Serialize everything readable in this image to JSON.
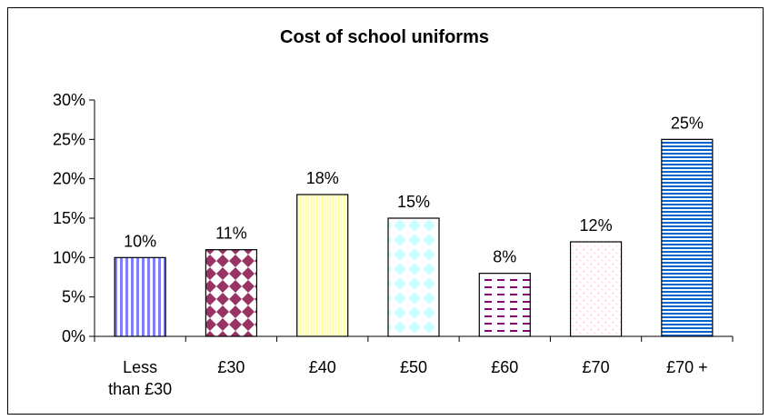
{
  "chart_data": {
    "type": "bar",
    "title": "Cost of school uniforms",
    "categories": [
      "Less than £30",
      "£30",
      "£40",
      "£50",
      "£60",
      "£70",
      "£70 +"
    ],
    "category_lines": [
      [
        "Less",
        "than £30"
      ],
      [
        "£30"
      ],
      [
        "£40"
      ],
      [
        "£50"
      ],
      [
        "£60"
      ],
      [
        "£70"
      ],
      [
        "£70 +"
      ]
    ],
    "values": [
      10,
      11,
      18,
      15,
      8,
      12,
      25
    ],
    "data_labels": [
      "10%",
      "11%",
      "18%",
      "15%",
      "8%",
      "12%",
      "25%"
    ],
    "ylim": [
      0,
      30
    ],
    "yticks": [
      0,
      5,
      10,
      15,
      20,
      25,
      30
    ],
    "ytick_labels": [
      "0%",
      "5%",
      "10%",
      "15%",
      "20%",
      "25%",
      "30%"
    ],
    "xlabel": "",
    "ylabel": "",
    "grid": false,
    "legend": "none",
    "bar_styles": [
      {
        "pattern": "vertical-stripes",
        "fg": "#8080ff",
        "bg": "#ffffff"
      },
      {
        "pattern": "checker-diamond",
        "fg": "#993366",
        "bg": "#ffffff"
      },
      {
        "pattern": "fine-hatch",
        "fg": "#ffff99",
        "bg": "#ffffee"
      },
      {
        "pattern": "diamonds",
        "fg": "#ccffff",
        "bg": "#ffffff"
      },
      {
        "pattern": "dashes",
        "fg": "#800080",
        "bg": "#ffffff"
      },
      {
        "pattern": "dots",
        "fg": "#ff99cc",
        "bg": "#ffffff"
      },
      {
        "pattern": "horizontal-stripes",
        "fg": "#0066cc",
        "bg": "#ffffff"
      }
    ]
  }
}
